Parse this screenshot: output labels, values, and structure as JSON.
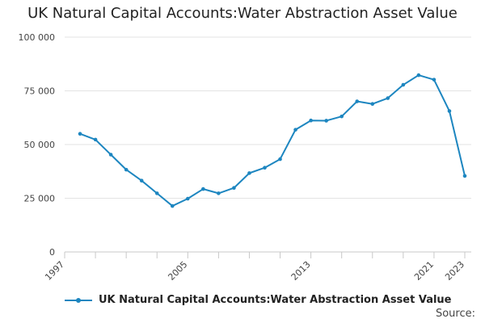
{
  "chart_data": {
    "type": "line",
    "title": "UK Natural Capital Accounts:Water Abstraction Asset Value",
    "xlabel": "",
    "ylabel": "",
    "xlim": [
      1997,
      2023
    ],
    "ylim": [
      0,
      100000
    ],
    "y_ticks": [
      0,
      25000,
      50000,
      75000,
      100000
    ],
    "y_tick_labels": [
      "0",
      "25 000",
      "50 000",
      "75 000",
      "100 000"
    ],
    "x_tick_labels": [
      "1997",
      "2005",
      "2013",
      "2021",
      "2023"
    ],
    "x_tick_positions": [
      1997,
      2005,
      2013,
      2021,
      2023
    ],
    "grid": true,
    "series": [
      {
        "name": "UK Natural Capital Accounts:Water Abstraction Asset Value",
        "color": "#1d86c0",
        "x": [
          1998,
          1999,
          2000,
          2001,
          2002,
          2003,
          2004,
          2005,
          2006,
          2007,
          2008,
          2009,
          2010,
          2011,
          2012,
          2013,
          2014,
          2015,
          2016,
          2017,
          2018,
          2019,
          2020,
          2021,
          2022,
          2023
        ],
        "values": [
          55000,
          52300,
          45300,
          38300,
          33200,
          27300,
          21400,
          24800,
          29300,
          27300,
          29800,
          36700,
          39200,
          43200,
          56900,
          61200,
          61100,
          63100,
          70100,
          68900,
          71600,
          77800,
          82300,
          80200,
          65600,
          35400
        ]
      }
    ]
  },
  "legend": {
    "label": "UK Natural Capital Accounts:Water Abstraction Asset Value"
  },
  "source": {
    "label": "Source:"
  }
}
